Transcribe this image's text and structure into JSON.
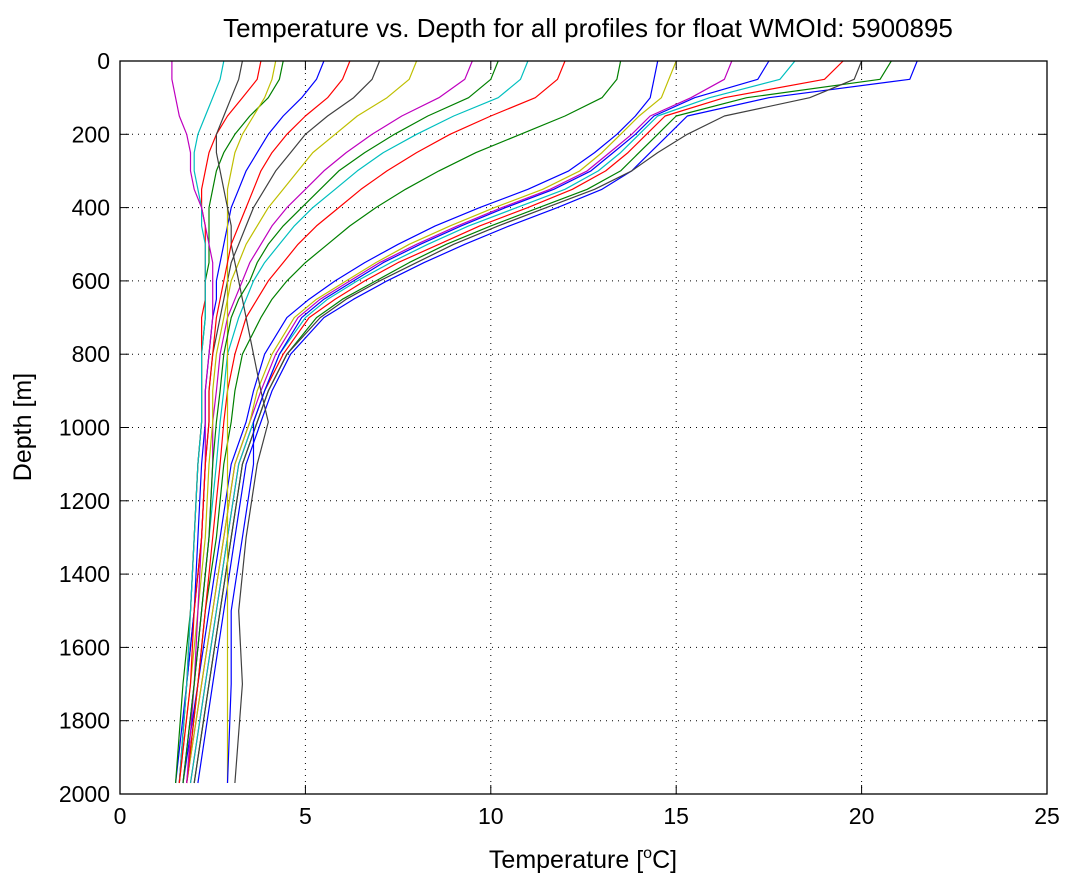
{
  "chart_data": {
    "type": "line",
    "title": "Temperature vs. Depth for all profiles for float WMOId: 5900895",
    "xlabel_prefix": "Temperature [",
    "xlabel_super": "o",
    "xlabel_suffix": "C]",
    "ylabel": "Depth [m]",
    "xlim": [
      0,
      25
    ],
    "ylim": [
      0,
      2000
    ],
    "y_inverted": true,
    "grid": true,
    "x_ticks": [
      0,
      5,
      10,
      15,
      20,
      25
    ],
    "y_ticks": [
      0,
      200,
      400,
      600,
      800,
      1000,
      1200,
      1400,
      1600,
      1800,
      2000
    ],
    "depths": [
      0,
      50,
      100,
      150,
      200,
      250,
      300,
      350,
      400,
      450,
      500,
      550,
      600,
      650,
      700,
      800,
      900,
      985,
      1100,
      1300,
      1500,
      1700,
      1970
    ],
    "color_cycle": [
      "#0000ff",
      "#008000",
      "#ff0000",
      "#00bfbf",
      "#bf00bf",
      "#bfbf00",
      "#404040"
    ],
    "series": [
      {
        "values": [
          21.5,
          21.3,
          17.5,
          15.3,
          14.8,
          14.3,
          13.8,
          13.0,
          11.8,
          10.5,
          9.3,
          8.2,
          7.2,
          6.3,
          5.5,
          4.6,
          4.1,
          3.8,
          3.4,
          3.1,
          2.8,
          2.5,
          2.1
        ]
      },
      {
        "values": [
          20.8,
          20.5,
          16.9,
          15.0,
          14.5,
          14.0,
          13.5,
          12.6,
          11.3,
          10.0,
          8.8,
          7.8,
          6.9,
          6.0,
          5.3,
          4.5,
          4.0,
          3.7,
          3.3,
          3.0,
          2.7,
          2.4,
          2.0
        ]
      },
      {
        "values": [
          19.5,
          19.0,
          16.3,
          14.7,
          14.2,
          13.7,
          13.1,
          12.2,
          11.0,
          9.7,
          8.6,
          7.5,
          6.6,
          5.8,
          5.1,
          4.4,
          3.9,
          3.6,
          3.2,
          2.9,
          2.6,
          2.3,
          1.9
        ]
      },
      {
        "values": [
          18.2,
          17.8,
          15.9,
          14.5,
          14.0,
          13.5,
          12.9,
          12.0,
          10.7,
          9.4,
          8.3,
          7.3,
          6.4,
          5.6,
          5.0,
          4.3,
          3.9,
          3.6,
          3.2,
          2.9,
          2.6,
          2.3,
          1.9
        ]
      },
      {
        "values": [
          16.5,
          16.3,
          15.4,
          14.3,
          13.8,
          13.2,
          12.6,
          11.6,
          10.3,
          9.1,
          8.0,
          7.0,
          6.2,
          5.4,
          4.8,
          4.2,
          3.8,
          3.5,
          3.1,
          2.8,
          2.5,
          2.2,
          1.8
        ]
      },
      {
        "values": [
          15.0,
          14.8,
          14.6,
          14.0,
          13.5,
          13.0,
          12.4,
          11.4,
          10.1,
          8.9,
          7.8,
          6.9,
          6.1,
          5.3,
          4.7,
          4.1,
          3.7,
          3.5,
          3.1,
          2.8,
          2.5,
          2.2,
          1.8
        ]
      },
      {
        "values": [
          20.0,
          19.8,
          18.6,
          16.3,
          15.3,
          14.5,
          13.8,
          12.8,
          11.5,
          10.2,
          9.0,
          8.0,
          7.0,
          6.1,
          5.4,
          4.5,
          4.0,
          3.7,
          3.3,
          3.0,
          2.7,
          2.4,
          2.0
        ]
      },
      {
        "values": [
          14.5,
          14.4,
          14.3,
          13.9,
          13.4,
          12.8,
          12.1,
          11.0,
          9.7,
          8.5,
          7.5,
          6.6,
          5.8,
          5.1,
          4.5,
          3.9,
          3.6,
          3.4,
          3.0,
          2.7,
          2.4,
          2.1,
          1.7
        ]
      },
      {
        "values": [
          13.5,
          13.4,
          13.0,
          12.0,
          10.8,
          9.6,
          8.6,
          7.7,
          6.9,
          6.2,
          5.6,
          5.0,
          4.5,
          4.1,
          3.8,
          3.3,
          3.1,
          3.0,
          2.8,
          2.6,
          2.3,
          2.1,
          1.8
        ]
      },
      {
        "values": [
          12.0,
          11.8,
          11.2,
          10.0,
          8.9,
          8.0,
          7.2,
          6.5,
          5.9,
          5.3,
          4.8,
          4.4,
          4.0,
          3.7,
          3.4,
          3.1,
          2.9,
          2.8,
          2.7,
          2.5,
          2.3,
          2.1,
          1.8
        ]
      },
      {
        "values": [
          11.0,
          10.8,
          10.2,
          9.0,
          8.0,
          7.1,
          6.4,
          5.8,
          5.2,
          4.7,
          4.3,
          3.9,
          3.6,
          3.4,
          3.2,
          2.9,
          2.8,
          2.7,
          2.6,
          2.4,
          2.2,
          2.0,
          1.7
        ]
      },
      {
        "values": [
          9.5,
          9.3,
          8.6,
          7.6,
          6.8,
          6.1,
          5.5,
          5.0,
          4.5,
          4.1,
          3.8,
          3.5,
          3.3,
          3.1,
          2.9,
          2.7,
          2.6,
          2.5,
          2.5,
          2.4,
          2.2,
          2.0,
          1.7
        ]
      },
      {
        "values": [
          8.0,
          7.8,
          7.2,
          6.4,
          5.8,
          5.2,
          4.8,
          4.4,
          4.0,
          3.7,
          3.4,
          3.2,
          3.0,
          2.9,
          2.8,
          2.6,
          2.5,
          2.5,
          2.4,
          2.3,
          2.1,
          1.9,
          1.6
        ]
      },
      {
        "values": [
          7.0,
          6.8,
          6.3,
          5.6,
          5.0,
          4.6,
          4.2,
          3.9,
          3.6,
          3.4,
          3.2,
          3.0,
          2.9,
          2.8,
          2.7,
          2.5,
          2.4,
          2.4,
          2.3,
          2.2,
          2.0,
          1.8,
          1.6
        ]
      },
      {
        "values": [
          5.5,
          5.3,
          4.9,
          4.4,
          4.0,
          3.7,
          3.4,
          3.2,
          3.0,
          2.9,
          2.8,
          2.7,
          2.6,
          2.6,
          2.5,
          2.4,
          2.3,
          2.3,
          2.2,
          2.1,
          2.0,
          1.8,
          1.5
        ]
      },
      {
        "values": [
          4.4,
          4.3,
          4.0,
          3.5,
          3.1,
          2.8,
          2.6,
          2.5,
          2.4,
          2.4,
          2.4,
          2.4,
          2.3,
          2.3,
          2.3,
          2.2,
          2.2,
          2.2,
          2.1,
          2.0,
          1.9,
          1.7,
          1.5
        ]
      },
      {
        "values": [
          3.8,
          3.7,
          3.3,
          2.9,
          2.6,
          2.4,
          2.3,
          2.2,
          2.2,
          2.3,
          2.3,
          2.3,
          2.3,
          2.3,
          2.2,
          2.2,
          2.2,
          2.2,
          2.1,
          2.0,
          1.9,
          1.8,
          1.6
        ]
      },
      {
        "values": [
          2.8,
          2.7,
          2.5,
          2.3,
          2.1,
          2.0,
          2.0,
          2.1,
          2.2,
          2.2,
          2.3,
          2.3,
          2.3,
          2.3,
          2.3,
          2.2,
          2.2,
          2.2,
          2.1,
          2.0,
          1.9,
          1.8,
          1.6
        ]
      },
      {
        "values": [
          1.4,
          1.4,
          1.5,
          1.6,
          1.8,
          1.9,
          1.9,
          2.0,
          2.2,
          2.3,
          2.4,
          2.5,
          2.5,
          2.5,
          2.5,
          2.4,
          2.3,
          2.3,
          2.3,
          2.2,
          2.1,
          2.0,
          1.8
        ]
      },
      {
        "values": [
          4.2,
          4.1,
          3.9,
          3.6,
          3.3,
          3.1,
          3.0,
          2.9,
          2.9,
          2.9,
          2.9,
          2.9,
          2.9,
          2.9,
          2.9,
          2.9,
          2.9,
          2.9,
          2.9,
          2.9,
          2.9,
          2.9,
          2.9
        ]
      },
      {
        "values": [
          3.3,
          3.2,
          3.0,
          2.8,
          2.6,
          2.6,
          2.7,
          2.8,
          2.9,
          3.0,
          3.0,
          3.1,
          3.2,
          3.3,
          3.4,
          3.6,
          3.8,
          4.0,
          3.7,
          3.4,
          3.2,
          3.3,
          3.1
        ]
      },
      {
        "values": [
          17.5,
          17.2,
          15.5,
          14.4,
          13.9,
          13.3,
          12.7,
          11.7,
          10.4,
          9.2,
          8.1,
          7.1,
          6.3,
          5.5,
          4.9,
          4.3,
          3.9,
          3.6,
          3.6,
          3.3,
          3.0,
          3.0,
          2.9
        ]
      },
      {
        "values": [
          10.2,
          10.0,
          9.4,
          8.3,
          7.4,
          6.6,
          5.9,
          5.4,
          4.9,
          4.4,
          4.0,
          3.7,
          3.5,
          3.2,
          3.0,
          2.8,
          2.7,
          2.6,
          2.5,
          2.4,
          2.2,
          2.0,
          1.7
        ]
      },
      {
        "values": [
          6.2,
          6.0,
          5.6,
          5.0,
          4.5,
          4.1,
          3.8,
          3.6,
          3.4,
          3.2,
          3.0,
          2.9,
          2.8,
          2.7,
          2.6,
          2.5,
          2.4,
          2.4,
          2.3,
          2.2,
          2.0,
          1.9,
          1.6
        ]
      }
    ]
  }
}
